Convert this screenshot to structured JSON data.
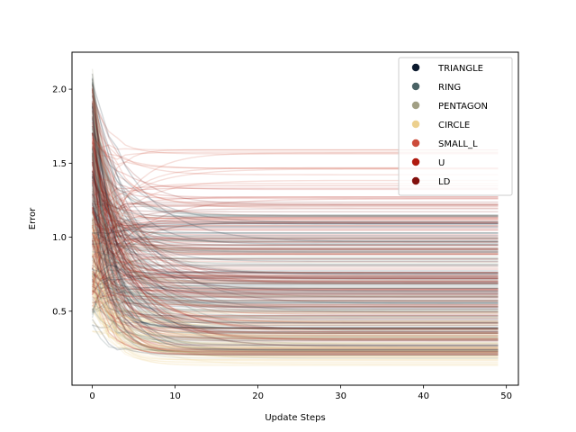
{
  "chart_data": {
    "type": "line",
    "xlabel": "Update Steps",
    "ylabel": "Error",
    "xlim": [
      -2.45,
      51.45
    ],
    "ylim": [
      0.0,
      2.25
    ],
    "xticks": [
      "0",
      "10",
      "20",
      "30",
      "40",
      "50"
    ],
    "yticks": [
      "0.5",
      "1.0",
      "1.5",
      "2.0"
    ],
    "x": {
      "start": 0,
      "end": 49,
      "step": 1
    },
    "legend_position": "upper right",
    "series": [
      {
        "name": "TRIANGLE",
        "color": "#0b1a2e",
        "error_range": [
          0.2,
          1.1
        ],
        "initial_range": [
          0.4,
          2.15
        ]
      },
      {
        "name": "RING",
        "color": "#4a6265",
        "error_range": [
          0.22,
          1.15
        ],
        "initial_range": [
          0.4,
          2.0
        ]
      },
      {
        "name": "PENTAGON",
        "color": "#a19f84",
        "error_range": [
          0.18,
          1.0
        ],
        "initial_range": [
          0.5,
          2.15
        ]
      },
      {
        "name": "CIRCLE",
        "color": "#ecd08e",
        "error_range": [
          0.13,
          0.5
        ],
        "initial_range": [
          0.35,
          1.2
        ]
      },
      {
        "name": "SMALL_L",
        "color": "#cc4b3a",
        "error_range": [
          0.2,
          1.6
        ],
        "initial_range": [
          0.5,
          2.0
        ]
      },
      {
        "name": "U",
        "color": "#b0190e",
        "error_range": [
          0.2,
          1.35
        ],
        "initial_range": [
          0.5,
          1.95
        ]
      },
      {
        "name": "LD",
        "color": "#820f0c",
        "error_range": [
          0.25,
          1.3
        ],
        "initial_range": [
          0.6,
          2.05
        ]
      }
    ]
  }
}
